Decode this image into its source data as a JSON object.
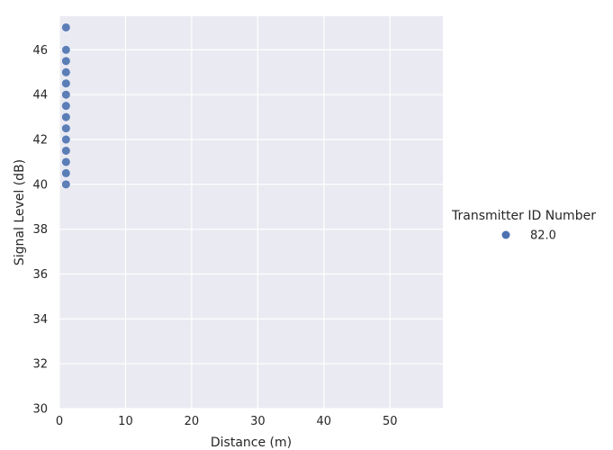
{
  "chart_data": {
    "type": "scatter",
    "xlabel": "Distance (m)",
    "ylabel": "Signal Level (dB)",
    "xlim": [
      0,
      58
    ],
    "ylim": [
      30,
      47.5
    ],
    "xticks": [
      0,
      10,
      20,
      30,
      40,
      50
    ],
    "yticks": [
      30,
      32,
      34,
      36,
      38,
      40,
      42,
      44,
      46
    ],
    "grid": true,
    "legend": {
      "title": "Transmitter ID Number",
      "placement": "right",
      "entries": [
        "82.0"
      ]
    },
    "series": [
      {
        "name": "82.0",
        "color": "#4c72b0",
        "points": [
          {
            "x": 1,
            "y": 47.0
          },
          {
            "x": 1,
            "y": 46.0
          },
          {
            "x": 1,
            "y": 45.5
          },
          {
            "x": 1,
            "y": 45.0
          },
          {
            "x": 1,
            "y": 44.5
          },
          {
            "x": 1,
            "y": 44.0
          },
          {
            "x": 1,
            "y": 43.5
          },
          {
            "x": 1,
            "y": 43.0
          },
          {
            "x": 1,
            "y": 42.5
          },
          {
            "x": 1,
            "y": 42.0
          },
          {
            "x": 1,
            "y": 41.5
          },
          {
            "x": 1,
            "y": 41.0
          },
          {
            "x": 1,
            "y": 40.5
          },
          {
            "x": 1,
            "y": 40.0
          }
        ]
      }
    ]
  }
}
